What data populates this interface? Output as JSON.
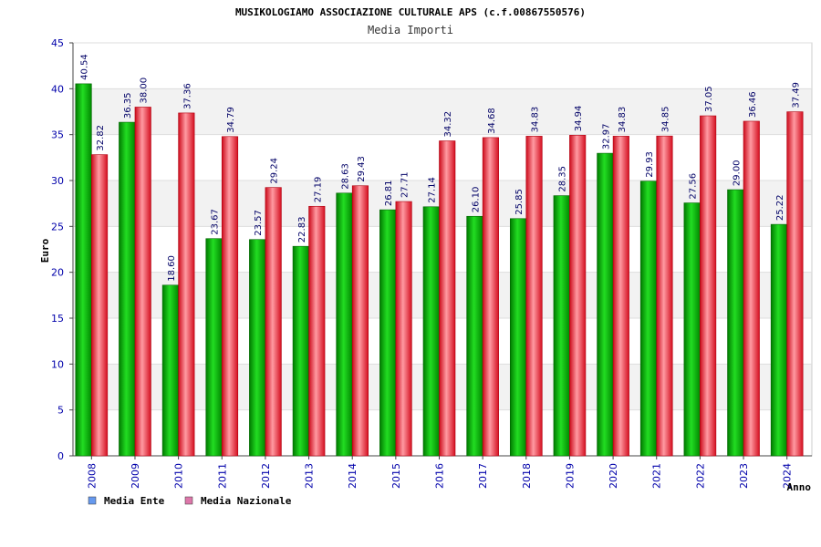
{
  "chart_data": {
    "type": "bar",
    "title": "MUSIKOLOGIAMO ASSOCIAZIONE CULTURALE APS (c.f.00867550576)",
    "subtitle": "Media Importi",
    "xlabel": "Anno",
    "ylabel": "Euro",
    "ylim": [
      0,
      45
    ],
    "yticks": [
      "0",
      "5",
      "10",
      "15",
      "20",
      "25",
      "30",
      "35",
      "40",
      "45"
    ],
    "grid": true,
    "legend_position": "bottom-left",
    "categories": [
      "2008",
      "2009",
      "2010",
      "2011",
      "2012",
      "2013",
      "2014",
      "2015",
      "2016",
      "2017",
      "2018",
      "2019",
      "2020",
      "2021",
      "2022",
      "2023",
      "2024"
    ],
    "series": [
      {
        "name": "Media Ente",
        "color": "#00b000",
        "legend_color": "#6699ee",
        "values": [
          40.54,
          36.35,
          18.6,
          23.67,
          23.57,
          22.83,
          28.63,
          26.81,
          27.14,
          26.1,
          25.85,
          28.35,
          32.97,
          29.93,
          27.56,
          29.0,
          25.22
        ],
        "labels": [
          "40.54",
          "36.35",
          "18.60",
          "23.67",
          "23.57",
          "22.83",
          "28.63",
          "26.81",
          "27.14",
          "26.10",
          "25.85",
          "28.35",
          "32.97",
          "29.93",
          "27.56",
          "29.00",
          "25.22"
        ]
      },
      {
        "name": "Media Nazionale",
        "color": "#e8202e",
        "legend_color": "#dd77aa",
        "values": [
          32.82,
          38.0,
          37.36,
          34.79,
          29.24,
          27.19,
          29.43,
          27.71,
          34.32,
          34.68,
          34.83,
          34.94,
          34.83,
          34.85,
          37.05,
          36.46,
          37.49
        ],
        "labels": [
          "32.82",
          "38.00",
          "37.36",
          "34.79",
          "29.24",
          "27.19",
          "29.43",
          "27.71",
          "34.32",
          "34.68",
          "34.83",
          "34.94",
          "34.83",
          "34.85",
          "37.05",
          "36.46",
          "37.49"
        ]
      }
    ]
  }
}
